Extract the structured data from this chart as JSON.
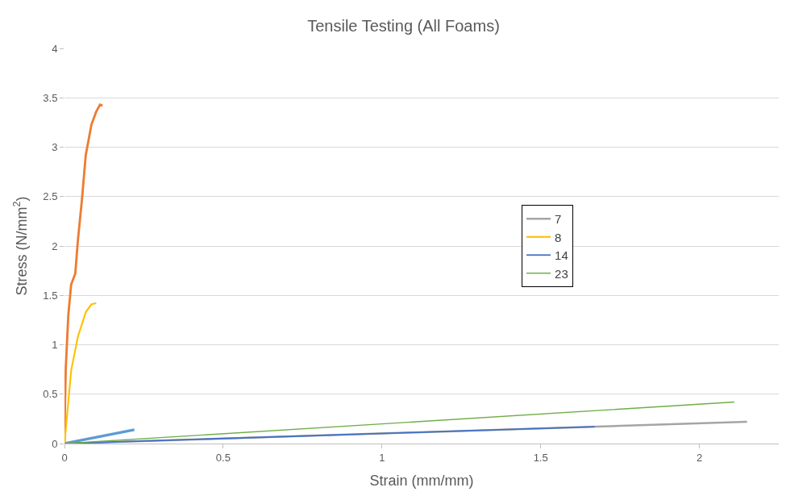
{
  "chart_data": {
    "type": "line",
    "title": "Tensile Testing (All Foams)",
    "xlabel": "Strain (mm/mm)",
    "ylabel": "Stress (N/mm$^{2}$)",
    "xlim": [
      0,
      2.25
    ],
    "xticks": [
      0,
      0.5,
      1,
      1.5,
      2
    ],
    "ylim": [
      0,
      4
    ],
    "yticks": [
      0,
      0.5,
      1,
      1.5,
      2,
      2.5,
      3,
      3.5,
      4
    ],
    "grid": "y",
    "legend": "right",
    "marker": "none",
    "line_style": "solid",
    "series": [
      {
        "color": "#5b9bd5",
        "x": [
          0,
          0.22
        ],
        "values": [
          0,
          0.14
        ]
      },
      {
        "color": "#ed7d31",
        "x": [
          0,
          0.001,
          0.004,
          0.012,
          0.021,
          0.034,
          0.042,
          0.055,
          0.067,
          0.085,
          0.1,
          0.112,
          0.12
        ],
        "values": [
          0,
          0.29,
          0.76,
          1.3,
          1.61,
          1.72,
          2.05,
          2.47,
          2.92,
          3.23,
          3.36,
          3.43,
          3.42
        ]
      },
      {
        "name": "7",
        "color": "#a5a5a5",
        "x": [
          0,
          2.15
        ],
        "values": [
          0,
          0.22
        ]
      },
      {
        "name": "8",
        "color": "#ffc000",
        "x": [
          0,
          0.021,
          0.042,
          0.067,
          0.085,
          0.1
        ],
        "values": [
          0,
          0.74,
          1.08,
          1.33,
          1.41,
          1.42
        ]
      },
      {
        "name": "14",
        "color": "#4472c4",
        "x": [
          0,
          1.67
        ],
        "values": [
          0,
          0.17
        ]
      },
      {
        "name": "23",
        "color": "#70ad47",
        "x": [
          0,
          2.11
        ],
        "values": [
          0,
          0.42
        ]
      }
    ]
  }
}
